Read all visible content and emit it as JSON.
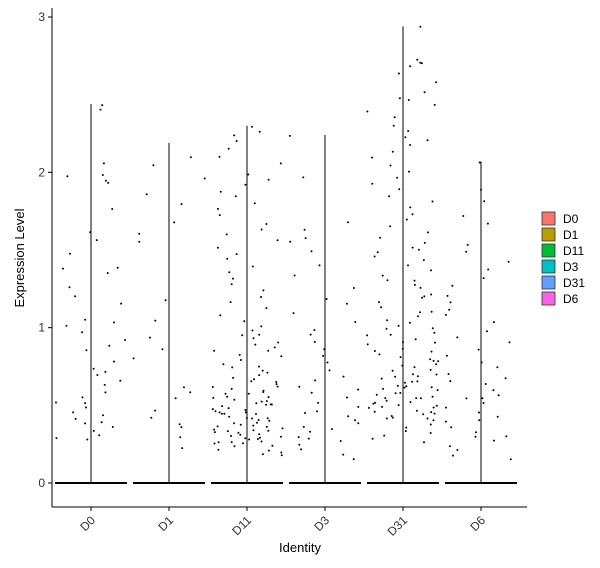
{
  "chart_data": {
    "type": "scatter",
    "subtype": "violin-jitter",
    "title": "",
    "xlabel": "Identity",
    "ylabel": "Expression Level",
    "categories": [
      "D0",
      "D1",
      "D11",
      "D3",
      "D31",
      "D6"
    ],
    "ylim": [
      -0.15,
      3.05
    ],
    "yticks": [
      0,
      1,
      2,
      3
    ],
    "grid": false,
    "legend": {
      "placement": "right",
      "entries": [
        {
          "name": "D0",
          "color": "#F8766D"
        },
        {
          "name": "D1",
          "color": "#B79F00"
        },
        {
          "name": "D11",
          "color": "#00BA38"
        },
        {
          "name": "D3",
          "color": "#00BFC4"
        },
        {
          "name": "D31",
          "color": "#619CFF"
        },
        {
          "name": "D6",
          "color": "#F564E3"
        }
      ]
    },
    "series": [
      {
        "name": "D0",
        "max": 2.44,
        "points": [
          2.43,
          2.41,
          2.06,
          1.98,
          1.95,
          1.93,
          1.76,
          1.56,
          1.48,
          1.39,
          1.38,
          1.35,
          1.2,
          1.16,
          1.05,
          1.03,
          1.01,
          0.97,
          0.92,
          0.88,
          0.86,
          0.78,
          0.74,
          0.71,
          0.69,
          0.63,
          0.58,
          0.55,
          0.52,
          0.48,
          0.45,
          0.43,
          0.41,
          0.38,
          0.36,
          0.34,
          0.31,
          0.29,
          0.28,
          1.98,
          1.62,
          1.26,
          0.66,
          0.52,
          0.39
        ]
      },
      {
        "name": "D1",
        "max": 2.19,
        "points": [
          2.1,
          2.05,
          1.96,
          1.86,
          1.8,
          1.68,
          1.61,
          1.55,
          1.18,
          1.05,
          0.94,
          0.86,
          0.8,
          0.62,
          0.59,
          0.55,
          0.46,
          0.42,
          0.38,
          0.36,
          0.3,
          0.22
        ]
      },
      {
        "name": "D11",
        "max": 2.3,
        "points": [
          2.29,
          2.26,
          2.24,
          2.2,
          2.15,
          2.1,
          2.06,
          1.99,
          1.95,
          1.92,
          1.88,
          1.84,
          1.8,
          1.76,
          1.72,
          1.67,
          1.63,
          1.6,
          1.56,
          1.52,
          1.48,
          1.44,
          1.4,
          1.36,
          1.32,
          1.28,
          1.24,
          1.2,
          1.16,
          1.12,
          1.08,
          1.04,
          1.01,
          0.98,
          0.95,
          0.93,
          0.91,
          0.89,
          0.87,
          0.85,
          0.83,
          0.81,
          0.79,
          0.77,
          0.75,
          0.73,
          0.71,
          0.7,
          0.68,
          0.67,
          0.65,
          0.64,
          0.62,
          0.61,
          0.6,
          0.58,
          0.57,
          0.56,
          0.55,
          0.54,
          0.53,
          0.52,
          0.51,
          0.5,
          0.49,
          0.48,
          0.47,
          0.46,
          0.45,
          0.44,
          0.43,
          0.42,
          0.41,
          0.4,
          0.39,
          0.38,
          0.37,
          0.36,
          0.35,
          0.34,
          0.33,
          0.32,
          0.31,
          0.3,
          0.29,
          0.28,
          0.27,
          0.26,
          0.25,
          0.24,
          0.23,
          0.22,
          0.21,
          0.2,
          0.19,
          0.18,
          0.95,
          0.85,
          0.75,
          0.65,
          0.55,
          0.45,
          0.35,
          0.25,
          0.62,
          0.52,
          0.42,
          0.32,
          0.58,
          0.48,
          0.38,
          0.28,
          0.44,
          0.34,
          0.4,
          0.3,
          0.36,
          0.26,
          0.5,
          0.46,
          0.33,
          0.29
        ]
      },
      {
        "name": "D3",
        "max": 2.24,
        "points": [
          2.23,
          1.97,
          1.68,
          1.63,
          1.58,
          1.55,
          1.49,
          1.4,
          1.33,
          1.25,
          1.19,
          1.15,
          1.09,
          1.04,
          0.99,
          0.95,
          0.91,
          0.86,
          0.82,
          0.77,
          0.73,
          0.69,
          0.66,
          0.62,
          0.58,
          0.55,
          0.52,
          0.49,
          0.46,
          0.43,
          0.41,
          0.38,
          0.35,
          0.33,
          0.3,
          0.28,
          0.25,
          0.21,
          0.18,
          0.15,
          0.6,
          0.45,
          0.36,
          0.27
        ]
      },
      {
        "name": "D31",
        "max": 2.94,
        "points": [
          2.94,
          2.73,
          2.7,
          2.7,
          2.68,
          2.63,
          2.58,
          2.52,
          2.48,
          2.46,
          2.43,
          2.39,
          2.35,
          2.3,
          2.27,
          2.22,
          2.2,
          2.17,
          2.13,
          2.09,
          2.05,
          2.01,
          1.97,
          1.93,
          1.89,
          1.85,
          1.81,
          1.77,
          1.73,
          1.69,
          1.65,
          1.61,
          1.58,
          1.55,
          1.52,
          1.49,
          1.46,
          1.43,
          1.4,
          1.37,
          1.34,
          1.31,
          1.28,
          1.25,
          1.22,
          1.19,
          1.16,
          1.13,
          1.1,
          1.07,
          1.05,
          1.03,
          1.01,
          0.99,
          0.97,
          0.95,
          0.93,
          0.91,
          0.89,
          0.87,
          0.85,
          0.83,
          0.81,
          0.79,
          0.78,
          0.76,
          0.75,
          0.73,
          0.72,
          0.7,
          0.69,
          0.67,
          0.66,
          0.65,
          0.63,
          0.62,
          0.61,
          0.6,
          0.58,
          0.57,
          0.56,
          0.55,
          0.54,
          0.53,
          0.52,
          0.51,
          0.5,
          0.49,
          0.48,
          0.47,
          0.46,
          0.45,
          0.44,
          0.43,
          0.42,
          0.41,
          0.4,
          0.38,
          0.36,
          0.34,
          0.32,
          0.3,
          0.28,
          0.26,
          1.5,
          1.3,
          1.1,
          0.9,
          0.7,
          0.6,
          0.5,
          1.2,
          1.0,
          0.8,
          0.65,
          0.55,
          0.45,
          0.95,
          0.75,
          0.62,
          0.52,
          0.42,
          0.85,
          0.68,
          0.58,
          0.48
        ]
      },
      {
        "name": "D6",
        "max": 2.07,
        "points": [
          2.06,
          1.89,
          1.81,
          1.72,
          1.67,
          1.53,
          1.49,
          1.42,
          1.38,
          1.32,
          1.27,
          1.21,
          1.16,
          1.12,
          1.08,
          1.03,
          0.98,
          0.94,
          0.9,
          0.86,
          0.82,
          0.78,
          0.74,
          0.7,
          0.67,
          0.64,
          0.6,
          0.57,
          0.54,
          0.51,
          0.48,
          0.45,
          0.42,
          0.39,
          0.36,
          0.33,
          0.3,
          0.27,
          0.24,
          0.21,
          0.18,
          0.15,
          0.65,
          0.55,
          0.4,
          0.3
        ]
      }
    ]
  }
}
